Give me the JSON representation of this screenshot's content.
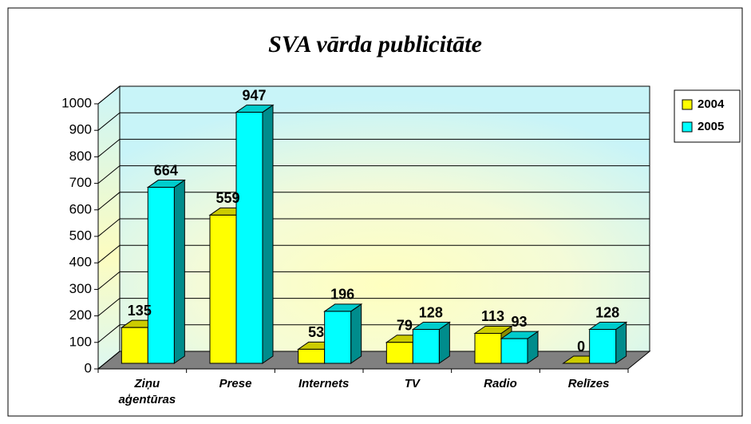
{
  "chart_data": {
    "type": "bar3d",
    "title": "SVA vārda publicitāte",
    "categories": [
      "Ziņu aģentūras",
      "Prese",
      "Internets",
      "TV",
      "Radio",
      "Relīzes"
    ],
    "series": [
      {
        "name": "2004",
        "color": "#ffff00",
        "values": [
          135,
          559,
          53,
          79,
          113,
          0
        ]
      },
      {
        "name": "2005",
        "color": "#00ffff",
        "values": [
          664,
          947,
          196,
          128,
          93,
          128
        ]
      }
    ],
    "ylim": [
      0,
      1000
    ],
    "yticks": [
      0,
      100,
      200,
      300,
      400,
      500,
      600,
      700,
      800,
      900,
      1000
    ],
    "grid": true,
    "legend": "right"
  }
}
